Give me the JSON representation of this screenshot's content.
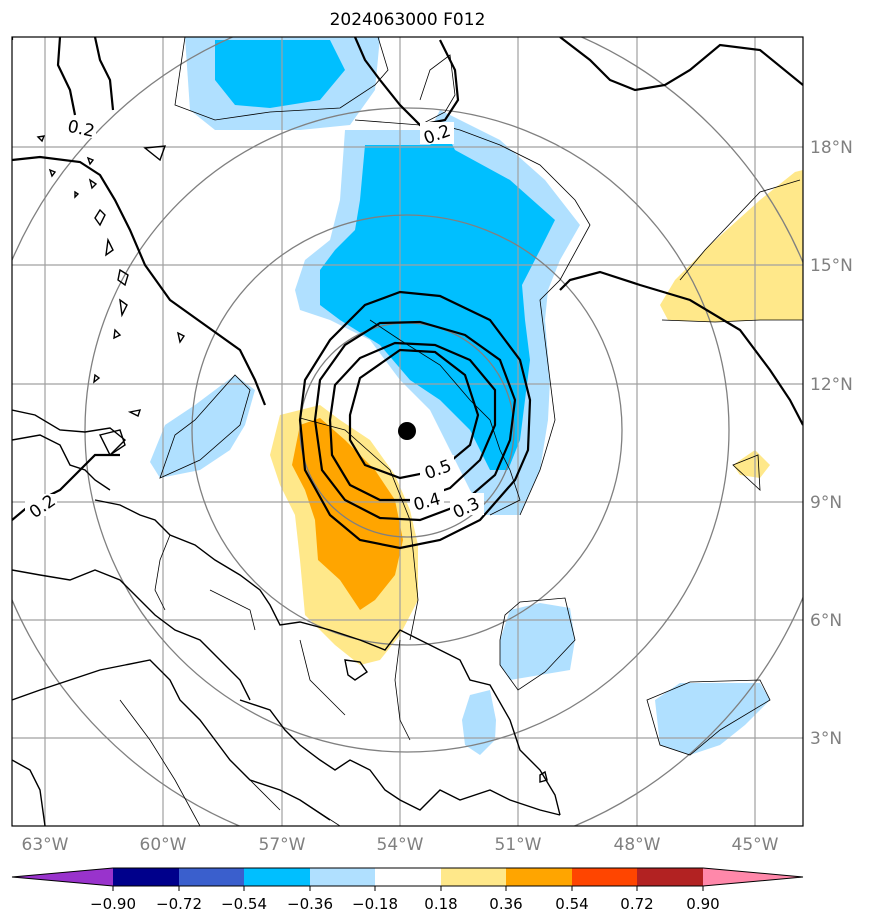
{
  "title": "2024063000 F012",
  "map": {
    "lon_labels": [
      "63°W",
      "60°W",
      "57°W",
      "54°W",
      "51°W",
      "48°W",
      "45°W"
    ],
    "lat_labels": [
      "18°N",
      "15°N",
      "12°N",
      "9°N",
      "6°N",
      "3°N"
    ],
    "contour_labels": [
      "0.2",
      "0.2",
      "0.2",
      "0.5",
      "0.4",
      "0.3"
    ],
    "center_marker": "storm-center",
    "colors": {
      "neg_090": "#9933cc",
      "neg_072": "#00008b",
      "neg_054": "#3a5fcd",
      "neg_036": "#00bfff",
      "neg_018": "#b0e0ff",
      "zero": "#ffffff",
      "pos_018": "#ffe88a",
      "pos_036": "#ffa500",
      "pos_054": "#ff4500",
      "pos_072": "#b22222",
      "pos_090": "#ff88aa"
    }
  },
  "colorbar": {
    "ticks": [
      "−0.90",
      "−0.72",
      "−0.54",
      "−0.36",
      "−0.18",
      "0.18",
      "0.36",
      "0.54",
      "0.72",
      "0.90"
    ]
  }
}
